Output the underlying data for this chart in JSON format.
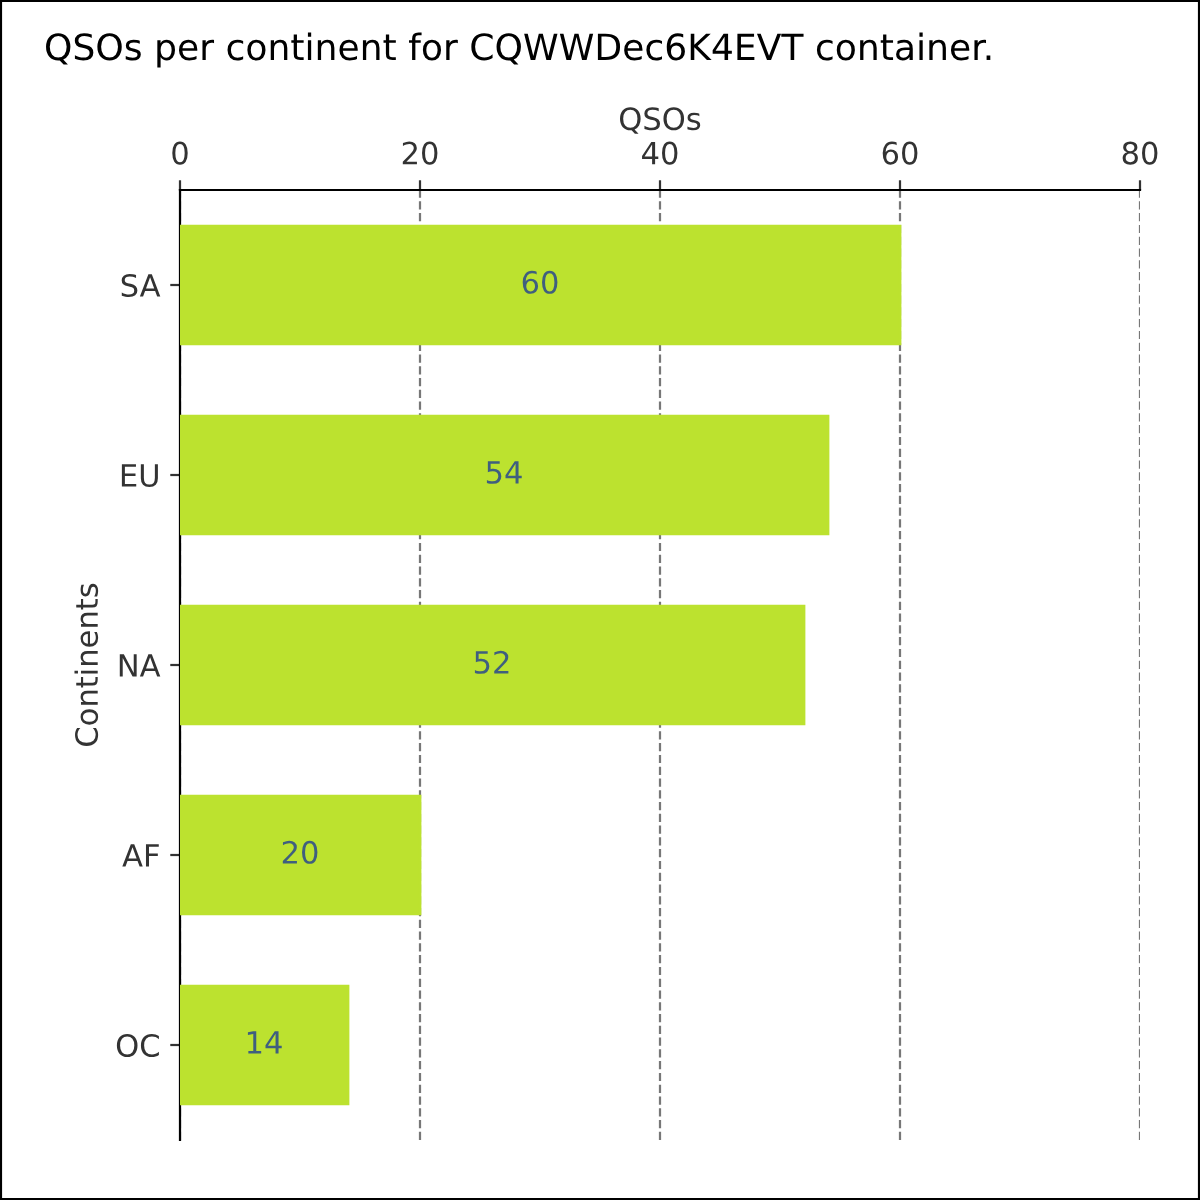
{
  "chart_data": {
    "type": "bar",
    "orientation": "horizontal",
    "title": "QSOs per continent for CQWWDec6K4EVT container.",
    "xlabel": "QSOs",
    "ylabel": "Continents",
    "categories": [
      "SA",
      "EU",
      "NA",
      "AF",
      "OC"
    ],
    "values": [
      60,
      54,
      52,
      20,
      14
    ],
    "color": "#bce22f",
    "xlim": [
      0,
      80
    ],
    "xticks": [
      0,
      20,
      40,
      60,
      80
    ],
    "grid": "x",
    "data_labels": true
  }
}
